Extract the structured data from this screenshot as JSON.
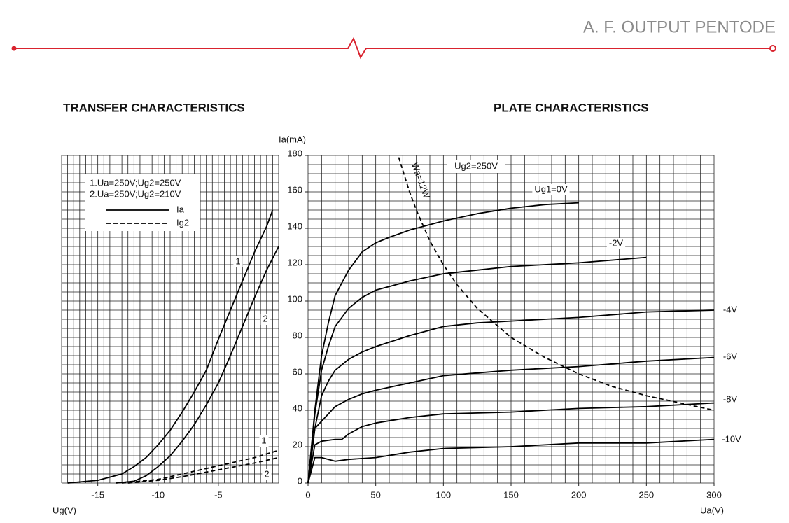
{
  "header": {
    "title": "A. F. OUTPUT PENTODE"
  },
  "chart_data": [
    {
      "type": "line",
      "title": "TRANSFER CHARACTERISTICS",
      "x_label": "Ug(V)",
      "xlim": [
        -18,
        0
      ],
      "xticks": [
        -15,
        -10,
        -5
      ],
      "ylim": [
        0,
        180
      ],
      "grid": {
        "x_step": 0.5,
        "y_step": 5
      },
      "conditions": [
        "1.Ua=250V;Ug2=250V",
        "2.Ua=250V;Ug2=210V"
      ],
      "line_styles": [
        {
          "label": "Ia",
          "dashed": false
        },
        {
          "label": "Ig2",
          "dashed": true
        }
      ],
      "series": [
        {
          "name": "1",
          "color": "#000000",
          "dashed": false,
          "x": [
            -17.5,
            -15,
            -13,
            -12,
            -11,
            -10,
            -9,
            -8,
            -7,
            -6,
            -5,
            -4,
            -3,
            -2,
            -1,
            -0.5
          ],
          "values": [
            0,
            1.5,
            5,
            9,
            14,
            21,
            29,
            39,
            50,
            62,
            79,
            95,
            111,
            127,
            141,
            150
          ]
        },
        {
          "name": "2",
          "color": "#000000",
          "dashed": false,
          "x": [
            -13.5,
            -12,
            -11,
            -10,
            -9,
            -8,
            -7,
            -6,
            -5,
            -4,
            -3,
            -2,
            -1,
            0
          ],
          "values": [
            0,
            1,
            4,
            9,
            15,
            23,
            32,
            43,
            55,
            70,
            86,
            102,
            117,
            130
          ]
        },
        {
          "name": "1",
          "color": "#000000",
          "dashed": true,
          "x": [
            -13,
            -10,
            -8,
            -6,
            -4,
            -2,
            0
          ],
          "values": [
            0,
            2,
            5,
            8,
            11,
            14,
            18
          ]
        },
        {
          "name": "2",
          "color": "#000000",
          "dashed": true,
          "x": [
            -12.5,
            -10,
            -8,
            -6,
            -4,
            -2,
            0
          ],
          "values": [
            0,
            1.5,
            3.5,
            6,
            8.5,
            11,
            14
          ]
        }
      ]
    },
    {
      "type": "line",
      "title": "PLATE CHARACTERISTICS",
      "x_label": "Ua(V)",
      "y_label": "Ia(mA)",
      "xlim": [
        0,
        300
      ],
      "xticks": [
        0,
        50,
        100,
        150,
        200,
        250,
        300
      ],
      "ylim": [
        0,
        180
      ],
      "yticks": [
        0,
        20,
        40,
        60,
        80,
        100,
        120,
        140,
        160,
        180
      ],
      "grid": {
        "x_step": 10,
        "y_step": 5
      },
      "annotation": "Ug2=250V",
      "series": [
        {
          "name": "Ug1=0V",
          "color": "#000000",
          "dashed": false,
          "x": [
            0,
            5,
            10,
            15,
            20,
            25,
            30,
            40,
            50,
            60,
            75,
            100,
            125,
            150,
            175,
            200
          ],
          "values": [
            0,
            40,
            70,
            88,
            103,
            110,
            117,
            127,
            132,
            135,
            139,
            144,
            148,
            151,
            153,
            154
          ]
        },
        {
          "name": "-2V",
          "color": "#000000",
          "dashed": false,
          "x": [
            0,
            5,
            10,
            15,
            20,
            30,
            40,
            50,
            60,
            75,
            100,
            125,
            150,
            200,
            250
          ],
          "values": [
            0,
            38,
            62,
            75,
            86,
            96,
            102,
            106,
            108,
            111,
            115,
            117,
            119,
            121,
            124
          ]
        },
        {
          "name": "-4V",
          "color": "#000000",
          "dashed": false,
          "x": [
            0,
            5,
            10,
            15,
            20,
            30,
            40,
            50,
            75,
            100,
            125,
            150,
            200,
            250,
            300
          ],
          "values": [
            0,
            30,
            48,
            56,
            62,
            68,
            72,
            75,
            81,
            86,
            88,
            89,
            91,
            94,
            95
          ]
        },
        {
          "name": "-6V",
          "color": "#000000",
          "dashed": false,
          "x": [
            0,
            5,
            10,
            15,
            20,
            30,
            40,
            50,
            75,
            100,
            150,
            200,
            250,
            300
          ],
          "values": [
            0,
            30,
            34,
            38,
            42,
            46,
            49,
            51,
            55,
            59,
            62,
            64,
            67,
            69
          ]
        },
        {
          "name": "-8V",
          "color": "#000000",
          "dashed": false,
          "x": [
            0,
            5,
            10,
            20,
            25,
            30,
            40,
            50,
            75,
            100,
            150,
            200,
            250,
            300
          ],
          "values": [
            0,
            21,
            23,
            24,
            24,
            27,
            31,
            33,
            36,
            38,
            39,
            41,
            42,
            44
          ]
        },
        {
          "name": "-10V",
          "color": "#000000",
          "dashed": false,
          "x": [
            0,
            5,
            10,
            20,
            30,
            50,
            75,
            100,
            150,
            200,
            250,
            300
          ],
          "values": [
            0,
            14,
            14,
            12,
            13,
            14,
            17,
            19,
            20,
            22,
            22,
            24
          ]
        },
        {
          "name": "Wa=12W",
          "color": "#000000",
          "dashed": true,
          "x": [
            67,
            75,
            80,
            90,
            100,
            110,
            125,
            150,
            175,
            200,
            225,
            250,
            275,
            300
          ],
          "values": [
            179,
            160,
            150,
            133,
            120,
            109,
            96,
            80,
            69,
            60,
            53,
            48,
            44,
            40
          ]
        }
      ]
    }
  ]
}
